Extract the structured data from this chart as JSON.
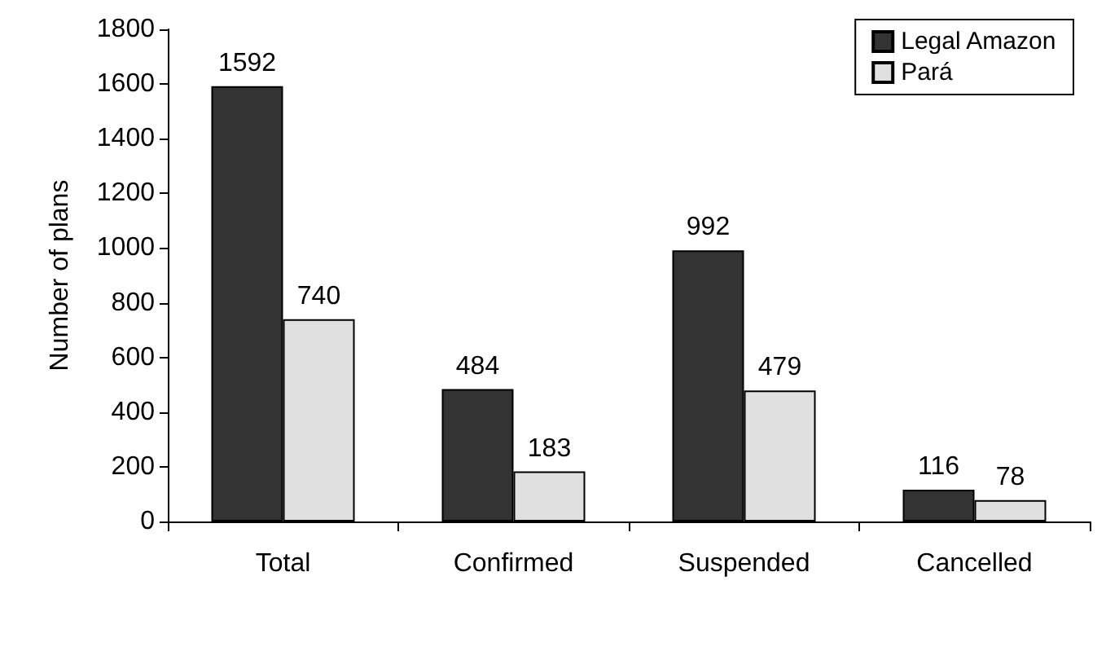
{
  "chart_data": {
    "type": "bar",
    "ylabel": "Number of plans",
    "categories": [
      "Total",
      "Confirmed",
      "Suspended",
      "Cancelled"
    ],
    "series": [
      {
        "name": "Legal Amazon",
        "color": "#333333",
        "values": [
          1592,
          484,
          992,
          116
        ]
      },
      {
        "name": "Pará",
        "color": "#e0e0e0",
        "values": [
          740,
          183,
          479,
          78
        ]
      }
    ],
    "ylim": [
      0,
      1800
    ],
    "yticks": [
      0,
      200,
      400,
      600,
      800,
      1000,
      1200,
      1400,
      1600,
      1800
    ],
    "data_labels": true,
    "grid": false,
    "legend": "top right"
  }
}
